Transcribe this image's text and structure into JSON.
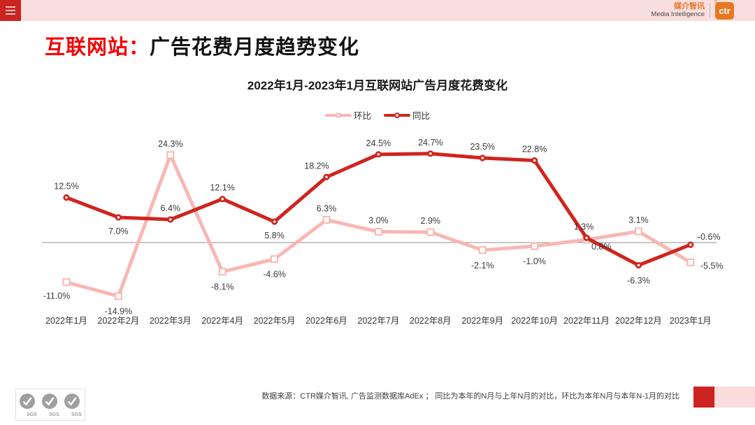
{
  "header": {
    "brand_cn": "媒介智讯",
    "brand_en": "Media Intelligence",
    "logo_text": "ctr",
    "registered_mark": "®"
  },
  "page_title": {
    "highlight": "互联网站：",
    "rest": "广告花费月度趋势变化"
  },
  "chart_data": {
    "type": "line",
    "title": "2022年1月-2023年1月互联网站广告月度花费变化",
    "categories": [
      "2022年1月",
      "2022年2月",
      "2022年3月",
      "2022年4月",
      "2022年5月",
      "2022年6月",
      "2022年7月",
      "2022年8月",
      "2022年9月",
      "2022年10月",
      "2022年11月",
      "2022年12月",
      "2023年1月"
    ],
    "series": [
      {
        "name": "环比",
        "color": "#f8b7b3",
        "marker": "square",
        "values": [
          -11.0,
          -14.9,
          24.3,
          -8.1,
          -4.6,
          6.3,
          3.0,
          2.9,
          -2.1,
          -1.0,
          0.8,
          3.1,
          -5.5
        ]
      },
      {
        "name": "同比",
        "color": "#d0241e",
        "marker": "circle",
        "values": [
          12.5,
          7.0,
          6.4,
          12.1,
          5.8,
          18.2,
          24.5,
          24.7,
          23.5,
          22.8,
          1.3,
          -6.3,
          -0.6
        ]
      }
    ],
    "label_format": "{value}%",
    "baseline": 0,
    "ylim": [
      -16,
      27
    ],
    "grid": false,
    "legend_position": "top-center"
  },
  "footer": {
    "source_note": "数据来源：CTR媒介智讯, 广告监测数据库AdEx ； 同比为本年的N月与上年N月的对比，环比为本年N月与本年N-1月的对比",
    "sgs_label": "SGS"
  },
  "colors": {
    "topbar_pink": "#f9dede",
    "accent_red": "#cc2420",
    "title_red": "#f40000",
    "brand_orange": "#e87722",
    "axis_gray": "#8f8f8f",
    "mom_pink": "#f8b7b3",
    "yoy_red": "#d0241e"
  }
}
